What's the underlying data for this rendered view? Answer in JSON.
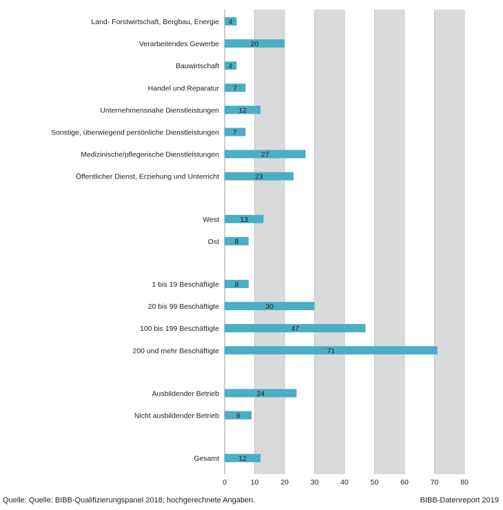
{
  "chart_data": {
    "type": "bar",
    "orientation": "horizontal",
    "categories": [
      "Land- Forstwirtschaft, Bergbau, Energie",
      "Verarbeitendes Gewerbe",
      "Bauwirtschaft",
      "Handel und Reparatur",
      "Unternehmensnahe Dienstleistungen",
      "Sonstige, überwiegend persönliche Dienstleistungen",
      "Medizinische/pflegerische Dienstleistungen",
      "Öffentlicher Dienst, Erziehung und Unterricht",
      "West",
      "Ost",
      "1 bis 19 Beschäftigte",
      "20 bis 99 Beschäftigte",
      "100 bis 199 Beschäftigte",
      "200 und mehr Beschäftigte",
      "Ausbildender Betrieb",
      "Nicht ausbildender Betrieb",
      "Gesamt"
    ],
    "values": [
      4,
      20,
      4,
      7,
      12,
      7,
      27,
      23,
      13,
      8,
      8,
      30,
      47,
      71,
      24,
      9,
      12
    ],
    "groups": [
      8,
      2,
      4,
      2,
      1
    ],
    "xlim": [
      0,
      80
    ],
    "xticks": [
      0,
      10,
      20,
      30,
      40,
      50,
      60,
      70,
      80
    ],
    "bar_color": "#4aaec4",
    "band_color": "#d9dadc",
    "grid": true,
    "title": "",
    "xlabel": "",
    "ylabel": ""
  },
  "footer": {
    "source": "Quelle: Quelle: BIBB-Qualifizierungspanel 2018; hochgerechnete Angaben.",
    "credit": "BIBB-Datenreport 2019"
  }
}
